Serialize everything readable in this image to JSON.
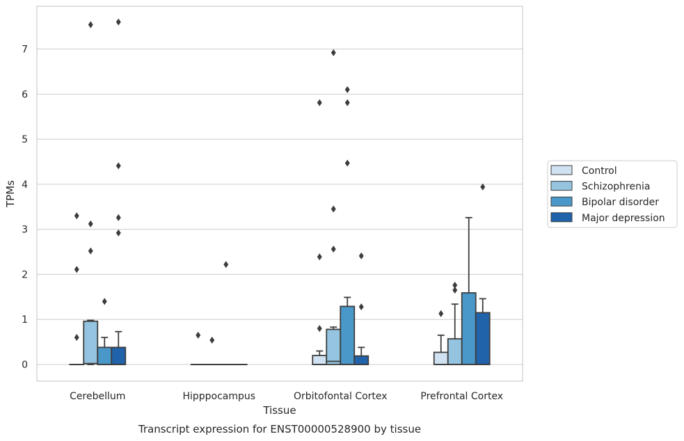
{
  "chart_data": {
    "type": "box",
    "xlabel": "Tissue",
    "ylabel": "TPMs",
    "caption": "Transcript expression for ENST00000528900 by tissue",
    "ylim": [
      -0.37,
      7.95
    ],
    "yticks": [
      0,
      1,
      2,
      3,
      4,
      5,
      6,
      7
    ],
    "grid": "horizontal",
    "legend_position": "right",
    "categories": [
      "Cerebellum",
      "Hipppocampus",
      "Orbitofontal Cortex",
      "Prefrontal Cortex"
    ],
    "series": [
      {
        "name": "Control",
        "color": "#d0e1f2",
        "boxes": [
          {
            "whisker_low": 0,
            "q1": 0,
            "median": 0,
            "q3": 0,
            "whisker_high": 0,
            "outliers": [
              0.6,
              2.11,
              3.3
            ]
          },
          {
            "whisker_low": 0,
            "q1": 0,
            "median": 0,
            "q3": 0,
            "whisker_high": 0,
            "outliers": [
              0.65
            ]
          },
          {
            "whisker_low": 0,
            "q1": 0,
            "median": 0,
            "q3": 0.2,
            "whisker_high": 0.3,
            "outliers": [
              0.8,
              2.39,
              5.81
            ]
          },
          {
            "whisker_low": 0,
            "q1": 0,
            "median": 0,
            "q3": 0.27,
            "whisker_high": 0.65,
            "outliers": [
              1.13
            ]
          }
        ]
      },
      {
        "name": "Schizophrenia",
        "color": "#94c4df",
        "boxes": [
          {
            "whisker_low": 0,
            "q1": 0.02,
            "median": 0.02,
            "q3": 0.96,
            "whisker_high": 0.98,
            "outliers": [
              2.52,
              3.12,
              7.54
            ]
          },
          {
            "whisker_low": 0,
            "q1": 0,
            "median": 0,
            "q3": 0,
            "whisker_high": 0,
            "outliers": [
              0.54
            ]
          },
          {
            "whisker_low": 0,
            "q1": 0,
            "median": 0.07,
            "q3": 0.78,
            "whisker_high": 0.83,
            "outliers": [
              2.56,
              3.45,
              6.92
            ]
          },
          {
            "whisker_low": 0,
            "q1": 0,
            "median": 0,
            "q3": 0.57,
            "whisker_high": 1.34,
            "outliers": [
              1.65,
              1.76
            ]
          }
        ]
      },
      {
        "name": "Bipolar disorder",
        "color": "#4a98c9",
        "boxes": [
          {
            "whisker_low": 0,
            "q1": 0,
            "median": 0,
            "q3": 0.38,
            "whisker_high": 0.6,
            "outliers": [
              1.4
            ]
          },
          {
            "whisker_low": 0,
            "q1": 0,
            "median": 0,
            "q3": 0,
            "whisker_high": 0,
            "outliers": [
              2.22
            ]
          },
          {
            "whisker_low": 0,
            "q1": 0,
            "median": 0,
            "q3": 1.29,
            "whisker_high": 1.49,
            "outliers": [
              4.47,
              5.81,
              6.1
            ]
          },
          {
            "whisker_low": 0,
            "q1": 0,
            "median": 0,
            "q3": 1.59,
            "whisker_high": 3.26,
            "outliers": []
          }
        ]
      },
      {
        "name": "Major depression",
        "color": "#2163aa",
        "boxes": [
          {
            "whisker_low": 0,
            "q1": 0,
            "median": 0,
            "q3": 0.38,
            "whisker_high": 0.73,
            "outliers": [
              2.92,
              3.26,
              4.41,
              7.6
            ]
          },
          {
            "whisker_low": 0,
            "q1": 0,
            "median": 0,
            "q3": 0,
            "whisker_high": 0,
            "outliers": []
          },
          {
            "whisker_low": 0,
            "q1": 0,
            "median": 0,
            "q3": 0.19,
            "whisker_high": 0.38,
            "outliers": [
              1.28,
              2.41
            ]
          },
          {
            "whisker_low": 0,
            "q1": 0,
            "median": 0,
            "q3": 1.15,
            "whisker_high": 1.46,
            "outliers": [
              3.94
            ]
          }
        ]
      }
    ]
  }
}
